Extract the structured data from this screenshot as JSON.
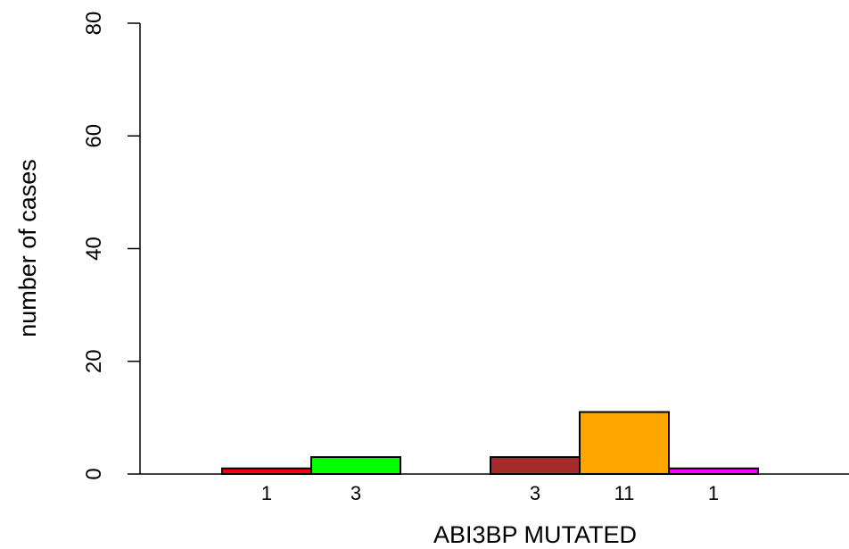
{
  "chart_data": {
    "type": "bar",
    "xlabel": "ABI3BP MUTATED",
    "ylabel": "number of cases",
    "ylim": [
      0,
      80
    ],
    "yticks": [
      0,
      20,
      40,
      60,
      80
    ],
    "grid": false,
    "legend": "none",
    "groups": [
      {
        "bars": [
          {
            "value": 1,
            "label": "1",
            "color": "#FF0000"
          },
          {
            "value": 3,
            "label": "3",
            "color": "#00FF00"
          }
        ]
      },
      {
        "bars": [
          {
            "value": 3,
            "label": "3",
            "color": "#A52A2A"
          },
          {
            "value": 11,
            "label": "11",
            "color": "#FFA500"
          },
          {
            "value": 1,
            "label": "1",
            "color": "#FF00FF"
          }
        ]
      }
    ]
  }
}
